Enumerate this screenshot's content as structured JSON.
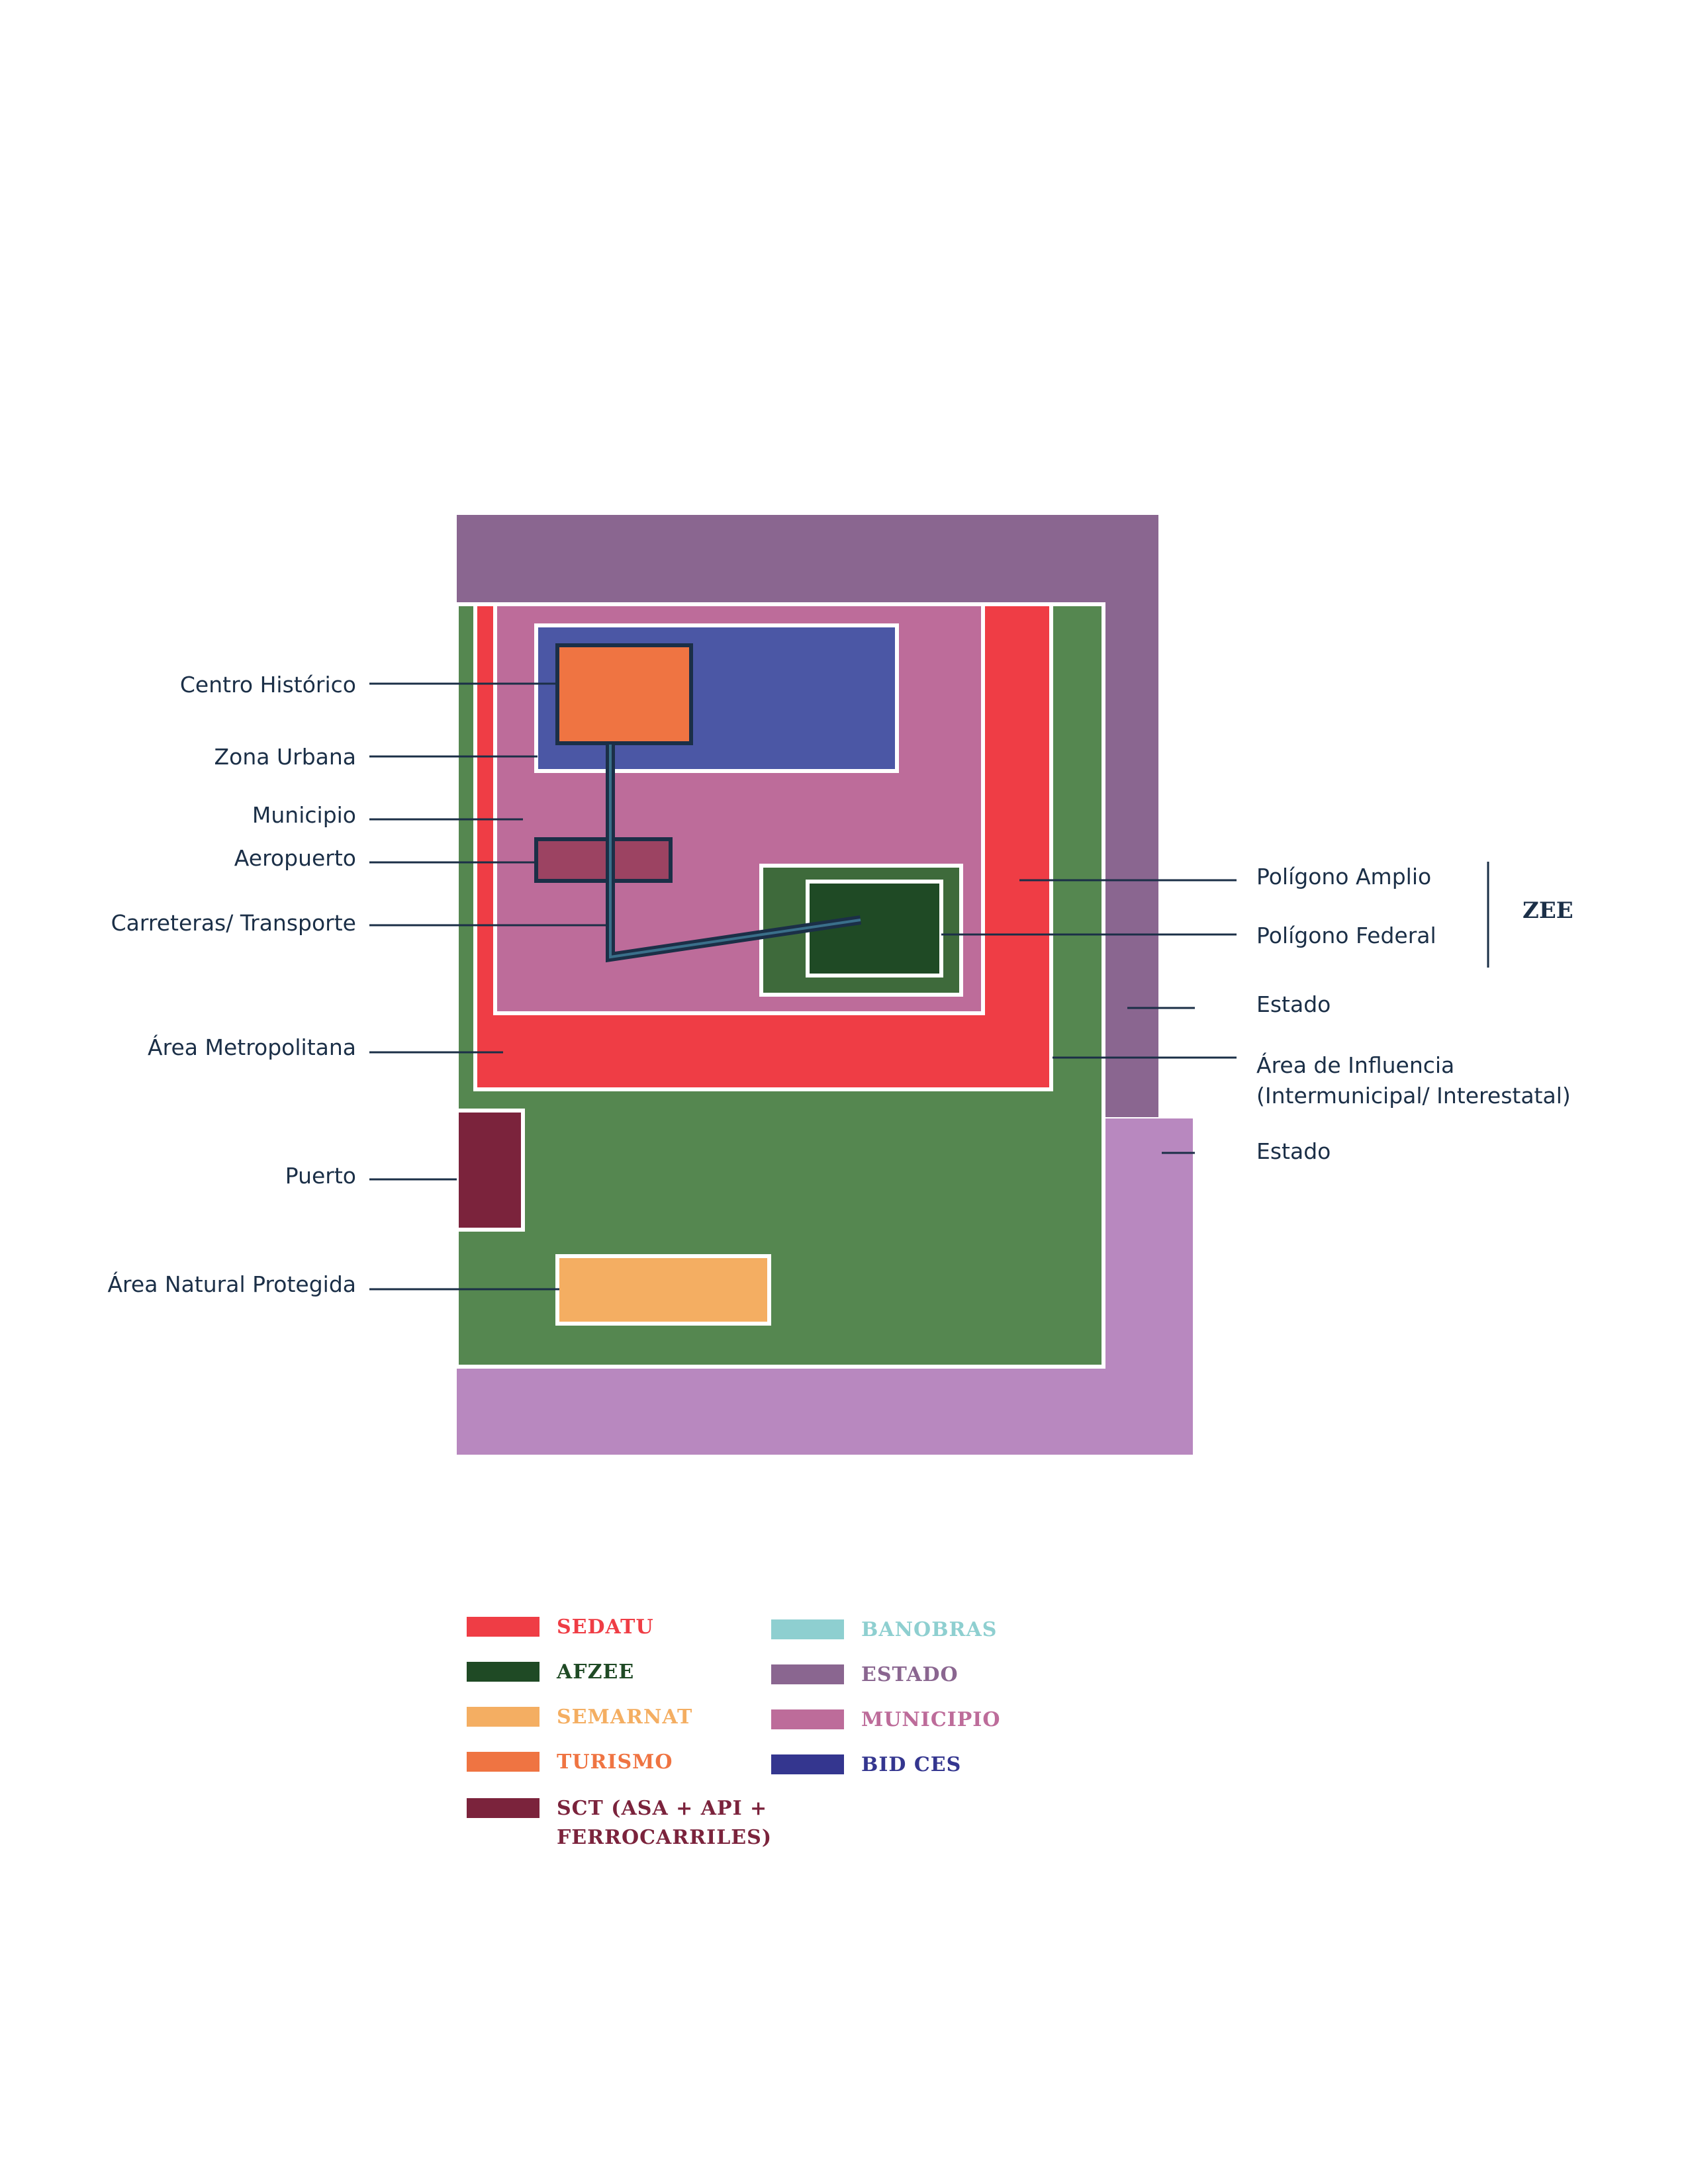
{
  "labels": {
    "left": [
      {
        "text": "Centro Histórico"
      },
      {
        "text": "Zona Urbana"
      },
      {
        "text": "Municipio"
      },
      {
        "text": "Aeropuerto"
      },
      {
        "text": "Carreteras/ Transporte"
      },
      {
        "text": "Área Metropolitana"
      },
      {
        "text": "Puerto"
      },
      {
        "text": "Área Natural Protegida"
      }
    ],
    "right": [
      {
        "text": "Polígono Amplio"
      },
      {
        "text": "Polígono Federal"
      },
      {
        "text": "Estado"
      },
      {
        "text": "Área de Influencia"
      },
      {
        "text": "(Intermunicipal/ Interestatal)"
      },
      {
        "text": "Estado"
      }
    ],
    "group": "ZEE"
  },
  "legend": {
    "col1": [
      {
        "label": "SEDATU",
        "color": "#ef3d45"
      },
      {
        "label": "AFZEE",
        "color": "#1f4a25"
      },
      {
        "label": "SEMARNAT",
        "color": "#f4ae62"
      },
      {
        "label": "TURISMO",
        "color": "#ef7442"
      },
      {
        "label": "SCT (ASA + API +\nFERROCARRILES)",
        "color": "#7b233c"
      }
    ],
    "col2": [
      {
        "label": "BANOBRAS",
        "color": "#8ecfd0"
      },
      {
        "label": "ESTADO",
        "color": "#8a6690"
      },
      {
        "label": "MUNICIPIO",
        "color": "#bd6c9a"
      },
      {
        "label": "BID CES",
        "color": "#34368f"
      }
    ]
  }
}
